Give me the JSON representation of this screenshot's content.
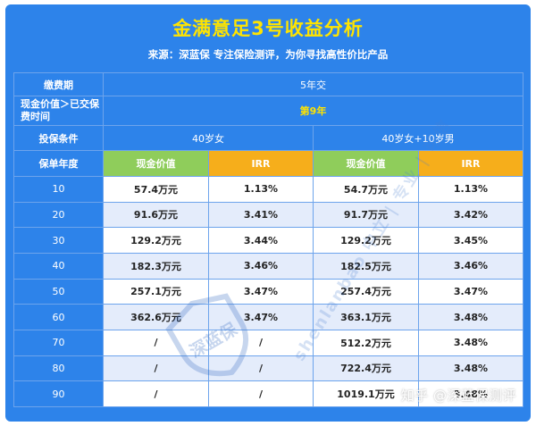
{
  "header": {
    "title": "金满意足3号收益分析",
    "subtitle": "来源：深蓝保   专注保险测评，为你寻找高性价比产品"
  },
  "table": {
    "payment_period_label": "缴费期",
    "payment_period_value": "5年交",
    "cash_value_exceed_label": "现金价值＞已交保费时间",
    "cash_value_exceed_value": "第9年",
    "insured_label": "投保条件",
    "group_a": "40岁女",
    "group_b": "40岁女+10岁男",
    "year_label": "保单年度",
    "col_cash_value": "现金价值",
    "col_irr": "IRR",
    "rows": [
      {
        "year": "10",
        "a_cash": "57.4万元",
        "a_irr": "1.13%",
        "b_cash": "54.7万元",
        "b_irr": "1.13%"
      },
      {
        "year": "20",
        "a_cash": "91.6万元",
        "a_irr": "3.41%",
        "b_cash": "91.7万元",
        "b_irr": "3.42%"
      },
      {
        "year": "30",
        "a_cash": "129.2万元",
        "a_irr": "3.44%",
        "b_cash": "129.2万元",
        "b_irr": "3.45%"
      },
      {
        "year": "40",
        "a_cash": "182.3万元",
        "a_irr": "3.46%",
        "b_cash": "182.5万元",
        "b_irr": "3.46%"
      },
      {
        "year": "50",
        "a_cash": "257.1万元",
        "a_irr": "3.47%",
        "b_cash": "257.4万元",
        "b_irr": "3.47%"
      },
      {
        "year": "60",
        "a_cash": "362.6万元",
        "a_irr": "3.47%",
        "b_cash": "363.1万元",
        "b_irr": "3.48%"
      },
      {
        "year": "70",
        "a_cash": "/",
        "a_irr": "/",
        "b_cash": "512.2万元",
        "b_irr": "3.48%"
      },
      {
        "year": "80",
        "a_cash": "/",
        "a_irr": "/",
        "b_cash": "722.4万元",
        "b_irr": "3.48%"
      },
      {
        "year": "90",
        "a_cash": "/",
        "a_irr": "/",
        "b_cash": "1019.1万元",
        "b_irr": "3.48%"
      }
    ]
  },
  "watermark": {
    "shield_text": "深蓝保",
    "diagonal_text": "shenlanbao 中立 | 专业 | 可信"
  },
  "footer": {
    "credit": "知乎 @深蓝保测评"
  },
  "colors": {
    "background": "#2d83ea",
    "title": "#ffe400",
    "green_header": "#8fcd5b",
    "orange_header": "#f6ae1b",
    "row_alt": "#e4ecfb"
  }
}
